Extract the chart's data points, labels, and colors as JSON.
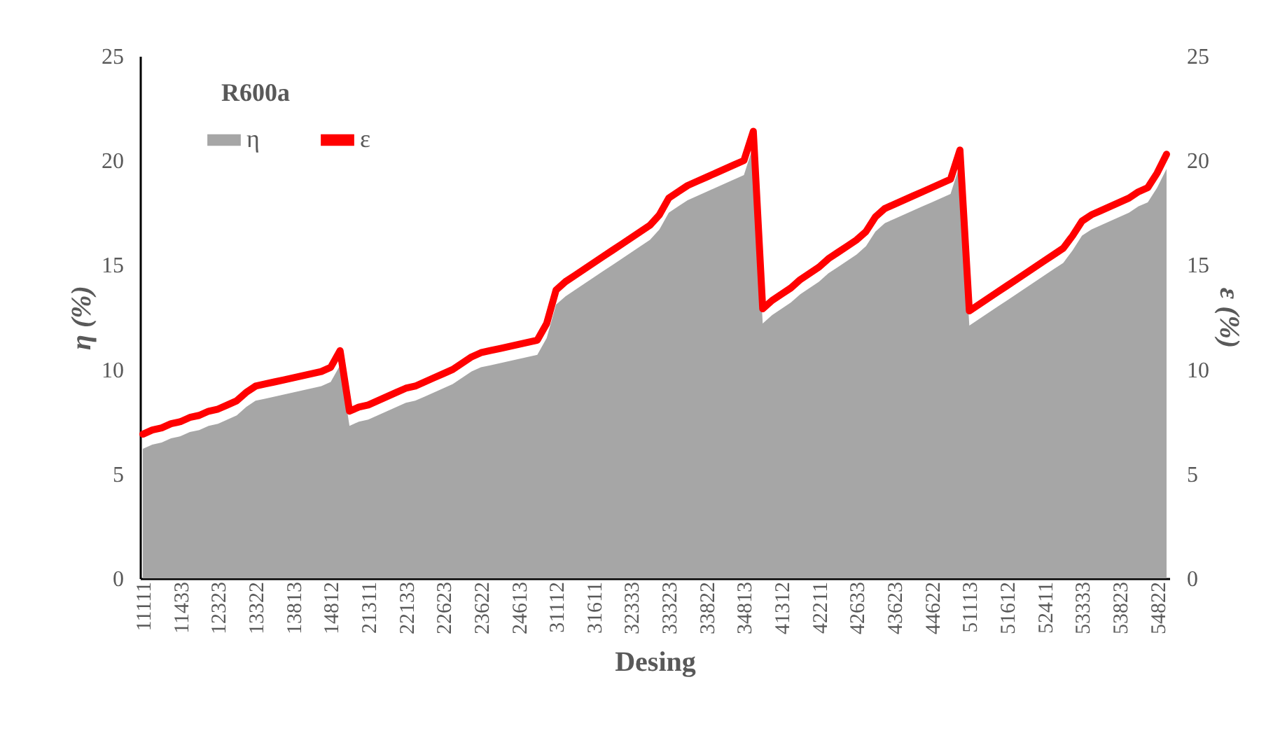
{
  "chart_data": {
    "type": "area",
    "title": "R600a",
    "xlabel": "Desing",
    "ylabel": "η (%)",
    "y2label": "ε (%)",
    "categories": [
      "11111",
      null,
      null,
      null,
      "11433",
      null,
      null,
      null,
      "12323",
      null,
      null,
      null,
      "13322",
      null,
      null,
      null,
      "13813",
      null,
      null,
      null,
      "14812",
      null,
      null,
      null,
      "21311",
      null,
      null,
      null,
      "22133",
      null,
      null,
      null,
      "22623",
      null,
      null,
      null,
      "23622",
      null,
      null,
      null,
      "24613",
      null,
      null,
      null,
      "31112",
      null,
      null,
      null,
      "31611",
      null,
      null,
      null,
      "32333",
      null,
      null,
      null,
      "33323",
      null,
      null,
      null,
      "33822",
      null,
      null,
      null,
      "34813",
      null,
      null,
      null,
      "41312",
      null,
      null,
      null,
      "42211",
      null,
      null,
      null,
      "42633",
      null,
      null,
      null,
      "43623",
      null,
      null,
      null,
      "44622",
      null,
      null,
      null,
      "51113",
      null,
      null,
      null,
      "51612",
      null,
      null,
      null,
      "52411",
      null,
      null,
      null,
      "53333",
      null,
      null,
      null,
      "53823",
      null,
      null,
      null,
      "54822",
      null
    ],
    "series": [
      {
        "name": "η",
        "color": "#a6a6a6",
        "values": [
          6.2,
          6.4,
          6.5,
          6.7,
          6.8,
          7.0,
          7.1,
          7.3,
          7.4,
          7.6,
          7.8,
          8.2,
          8.5,
          8.6,
          8.7,
          8.8,
          8.9,
          9.0,
          9.1,
          9.2,
          9.4,
          10.2,
          7.3,
          7.5,
          7.6,
          7.8,
          8.0,
          8.2,
          8.4,
          8.5,
          8.7,
          8.9,
          9.1,
          9.3,
          9.6,
          9.9,
          10.1,
          10.2,
          10.3,
          10.4,
          10.5,
          10.6,
          10.7,
          11.5,
          13.1,
          13.5,
          13.8,
          14.1,
          14.4,
          14.7,
          15.0,
          15.3,
          15.6,
          15.9,
          16.2,
          16.7,
          17.5,
          17.8,
          18.1,
          18.3,
          18.5,
          18.7,
          18.9,
          19.1,
          19.3,
          20.7,
          12.2,
          12.6,
          12.9,
          13.2,
          13.6,
          13.9,
          14.2,
          14.6,
          14.9,
          15.2,
          15.5,
          15.9,
          16.6,
          17.0,
          17.2,
          17.4,
          17.6,
          17.8,
          18.0,
          18.2,
          18.4,
          19.8,
          12.1,
          12.4,
          12.7,
          13.0,
          13.3,
          13.6,
          13.9,
          14.2,
          14.5,
          14.8,
          15.1,
          15.7,
          16.4,
          16.7,
          16.9,
          17.1,
          17.3,
          17.5,
          17.8,
          18.0,
          18.7,
          19.6
        ]
      },
      {
        "name": "ε",
        "type": "line",
        "axis": "y2",
        "color": "#ff0000",
        "values": [
          6.9,
          7.1,
          7.2,
          7.4,
          7.5,
          7.7,
          7.8,
          8.0,
          8.1,
          8.3,
          8.5,
          8.9,
          9.2,
          9.3,
          9.4,
          9.5,
          9.6,
          9.7,
          9.8,
          9.9,
          10.1,
          10.9,
          8.0,
          8.2,
          8.3,
          8.5,
          8.7,
          8.9,
          9.1,
          9.2,
          9.4,
          9.6,
          9.8,
          10.0,
          10.3,
          10.6,
          10.8,
          10.9,
          11.0,
          11.1,
          11.2,
          11.3,
          11.4,
          12.2,
          13.8,
          14.2,
          14.5,
          14.8,
          15.1,
          15.4,
          15.7,
          16.0,
          16.3,
          16.6,
          16.9,
          17.4,
          18.2,
          18.5,
          18.8,
          19.0,
          19.2,
          19.4,
          19.6,
          19.8,
          20.0,
          21.4,
          12.9,
          13.3,
          13.6,
          13.9,
          14.3,
          14.6,
          14.9,
          15.3,
          15.6,
          15.9,
          16.2,
          16.6,
          17.3,
          17.7,
          17.9,
          18.1,
          18.3,
          18.5,
          18.7,
          18.9,
          19.1,
          20.5,
          12.8,
          13.1,
          13.4,
          13.7,
          14.0,
          14.3,
          14.6,
          14.9,
          15.2,
          15.5,
          15.8,
          16.4,
          17.1,
          17.4,
          17.6,
          17.8,
          18.0,
          18.2,
          18.5,
          18.7,
          19.4,
          20.3
        ]
      }
    ],
    "ylim": [
      0,
      25
    ],
    "yticks": [
      0,
      5,
      10,
      15,
      20,
      25
    ],
    "y2lim": [
      0,
      25
    ],
    "y2ticks": [
      0,
      5,
      10,
      15,
      20,
      25
    ],
    "grid": false,
    "legend": "top left"
  }
}
